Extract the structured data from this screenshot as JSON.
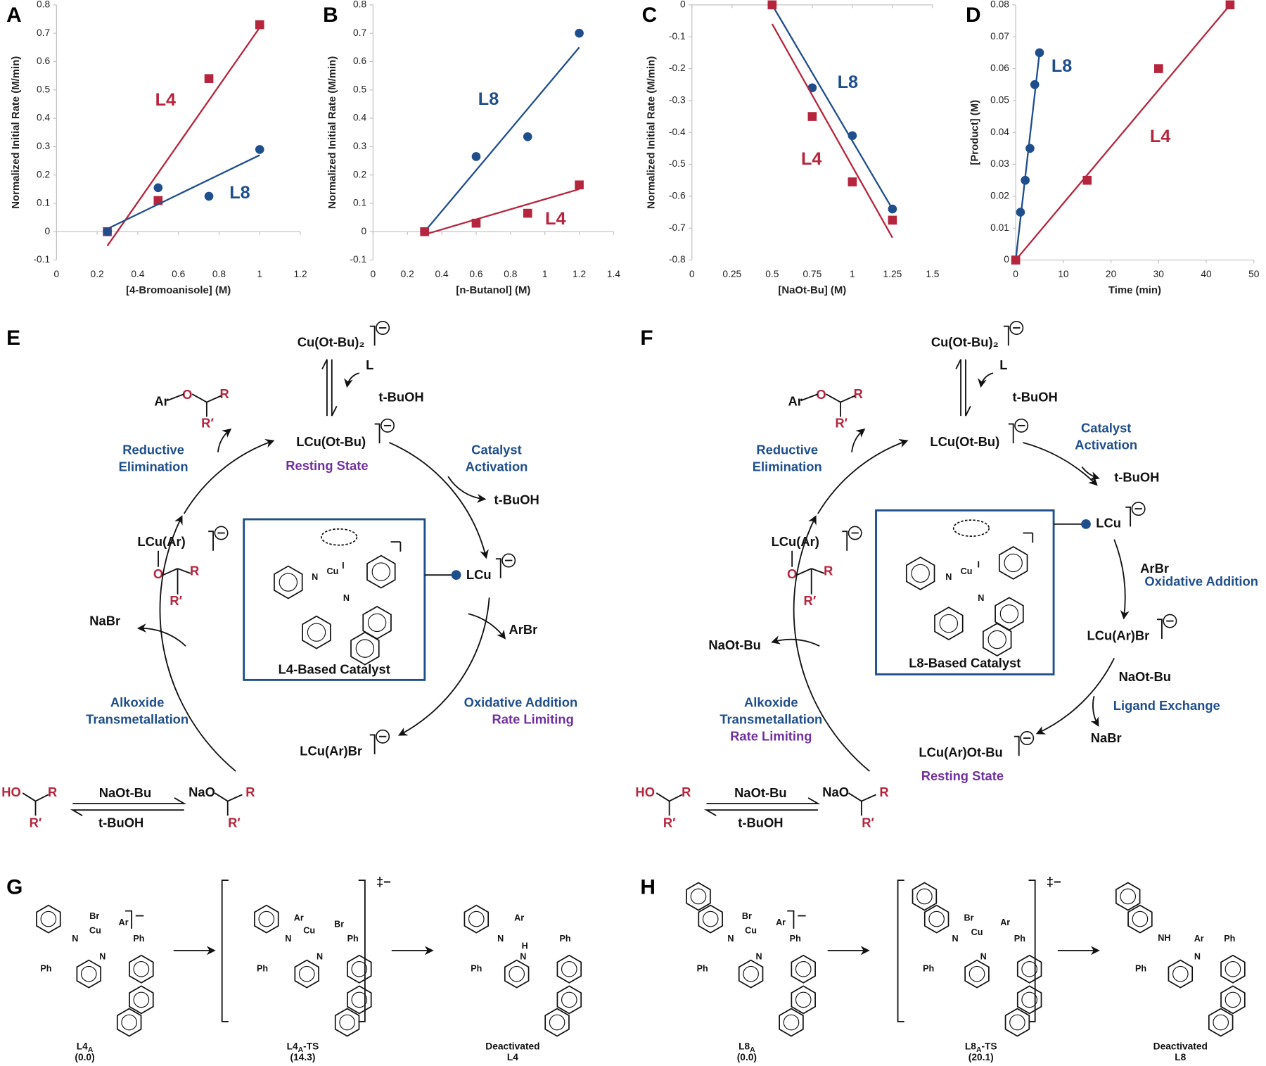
{
  "chart_data": [
    {
      "type": "scatter",
      "panel_label": "A",
      "x_label": "[4-Bromoanisole] (M)",
      "y_label": "Normalized Initial Rate (M/min)",
      "xlim": [
        0,
        1.2
      ],
      "xticks": [
        0,
        0.2,
        0.4,
        0.6,
        0.8,
        1,
        1.2
      ],
      "ylim": [
        -0.1,
        0.8
      ],
      "yticks": [
        -0.1,
        0,
        0.1,
        0.2,
        0.3,
        0.4,
        0.5,
        0.6,
        0.7,
        0.8
      ],
      "series": [
        {
          "name": "L4",
          "color": "#b5253d",
          "marker": "square",
          "x": [
            0.25,
            0.5,
            0.75,
            1
          ],
          "values": [
            0,
            0.11,
            0.54,
            0.73
          ],
          "trendline": {
            "x": [
              0.25,
              1
            ],
            "y": [
              -0.05,
              0.72
            ]
          }
        },
        {
          "name": "L8",
          "color": "#1f4e8c",
          "marker": "circle",
          "x": [
            0.25,
            0.5,
            0.75,
            1
          ],
          "values": [
            0,
            0.155,
            0.125,
            0.29
          ],
          "trendline": {
            "x": [
              0.25,
              1
            ],
            "y": [
              0.01,
              0.27
            ]
          }
        }
      ]
    },
    {
      "type": "scatter",
      "panel_label": "B",
      "x_label": "[n-Butanol] (M)",
      "y_label": "Normalized Initial Rate (M/min)",
      "xlim": [
        0,
        1.4
      ],
      "xticks": [
        0,
        0.2,
        0.4,
        0.6,
        0.8,
        1,
        1.2,
        1.4
      ],
      "ylim": [
        -0.1,
        0.8
      ],
      "yticks": [
        -0.1,
        0,
        0.1,
        0.2,
        0.3,
        0.4,
        0.5,
        0.6,
        0.7,
        0.8
      ],
      "series": [
        {
          "name": "L8",
          "color": "#1f4e8c",
          "marker": "circle",
          "x": [
            0.3,
            0.6,
            0.9,
            1.2
          ],
          "values": [
            0,
            0.265,
            0.335,
            0.7
          ],
          "trendline": {
            "x": [
              0.3,
              1.2
            ],
            "y": [
              0,
              0.65
            ]
          }
        },
        {
          "name": "L4",
          "color": "#b5253d",
          "marker": "square",
          "x": [
            0.3,
            0.6,
            0.9,
            1.2
          ],
          "values": [
            0,
            0.03,
            0.065,
            0.165
          ],
          "trendline": {
            "x": [
              0.3,
              1.2
            ],
            "y": [
              -0.01,
              0.15
            ]
          }
        }
      ]
    },
    {
      "type": "scatter",
      "panel_label": "C",
      "x_label": "[NaOt-Bu] (M)",
      "y_label": "Normalized Initial Rate (M/min)",
      "xlim": [
        0,
        1.5
      ],
      "xticks": [
        0,
        0.25,
        0.5,
        0.75,
        1,
        1.25,
        1.5
      ],
      "ylim": [
        -0.8,
        0
      ],
      "yticks": [
        -0.8,
        -0.7,
        -0.6,
        -0.5,
        -0.4,
        -0.3,
        -0.2,
        -0.1,
        0
      ],
      "series": [
        {
          "name": "L8",
          "color": "#1f4e8c",
          "marker": "circle",
          "x": [
            0.5,
            0.75,
            1,
            1.25
          ],
          "values": [
            0,
            -0.26,
            -0.41,
            -0.64
          ],
          "trendline": {
            "x": [
              0.5,
              1.25
            ],
            "y": [
              0,
              -0.64
            ]
          }
        },
        {
          "name": "L4",
          "color": "#b5253d",
          "marker": "square",
          "x": [
            0.5,
            0.75,
            1,
            1.25
          ],
          "values": [
            0,
            -0.35,
            -0.555,
            -0.675
          ],
          "trendline": {
            "x": [
              0.5,
              1.25
            ],
            "y": [
              -0.06,
              -0.73
            ]
          }
        }
      ]
    },
    {
      "type": "scatter",
      "panel_label": "D",
      "x_label": "Time (min)",
      "y_label": "[Product] (M)",
      "xlim": [
        0,
        50
      ],
      "xticks": [
        0,
        10,
        20,
        30,
        40,
        50
      ],
      "ylim": [
        0,
        0.08
      ],
      "yticks": [
        0,
        0.01,
        0.02,
        0.03,
        0.04,
        0.05,
        0.06,
        0.07,
        0.08
      ],
      "series": [
        {
          "name": "L8",
          "color": "#1f4e8c",
          "marker": "circle",
          "x": [
            0,
            1,
            2,
            3,
            4,
            5
          ],
          "values": [
            0,
            0.015,
            0.025,
            0.035,
            0.055,
            0.065
          ],
          "trendline": {
            "x": [
              0,
              5
            ],
            "y": [
              0,
              0.065
            ]
          }
        },
        {
          "name": "L4",
          "color": "#b5253d",
          "marker": "square",
          "x": [
            0,
            15,
            30,
            45
          ],
          "values": [
            0,
            0.025,
            0.06,
            0.08
          ],
          "trendline": {
            "x": [
              0,
              45
            ],
            "y": [
              0,
              0.08
            ]
          }
        }
      ]
    }
  ],
  "scheme_e": {
    "label": "E",
    "catalyst_label": "L4-Based Catalyst",
    "catalyst_atoms": [
      "N",
      "Cu",
      "I",
      "N"
    ],
    "texts": [
      "Cu(Ot-Bu)₂",
      "L",
      "t-BuOH",
      "Ar",
      "O",
      "R",
      "R′",
      "LCu(Ot-Bu)",
      "Resting State",
      "Reductive",
      "Elimination",
      "Catalyst",
      "Activation",
      "t-BuOH",
      "LCu",
      "LCu(Ar)",
      "O",
      "R",
      "R′",
      "NaBr",
      "ArBr",
      "Oxidative Addition",
      "Rate Limiting",
      "Alkoxide",
      "Transmetallation",
      "LCu(Ar)Br",
      "HO",
      "R",
      "R′",
      "NaOt-Bu",
      "t-BuOH",
      "NaO",
      "R",
      "R′"
    ]
  },
  "scheme_f": {
    "label": "F",
    "catalyst_label": "L8-Based Catalyst",
    "catalyst_atoms": [
      "N",
      "Cu",
      "I",
      "N"
    ],
    "texts": [
      "Cu(Ot-Bu)₂",
      "L",
      "t-BuOH",
      "Ar",
      "O",
      "R",
      "R′",
      "LCu(Ot-Bu)",
      "Reductive",
      "Elimination",
      "Catalyst",
      "Activation",
      "t-BuOH",
      "LCu",
      "ArBr",
      "Oxidative Addition",
      "LCu(Ar)Br",
      "NaOt-Bu",
      "Ligand Exchange",
      "NaBr",
      "LCu(Ar)Ot-Bu",
      "Resting State",
      "LCu(Ar)",
      "O",
      "R",
      "R′",
      "NaOt-Bu",
      "Alkoxide",
      "Transmetallation",
      "Rate Limiting",
      "HO",
      "R",
      "R′",
      "NaOt-Bu",
      "t-BuOH",
      "NaO",
      "R",
      "R′"
    ]
  },
  "panel_g": {
    "label": "G",
    "ts_charge": "‡−",
    "compounds": [
      {
        "label": [
          "L4",
          "A"
        ],
        "note": "(0.0)",
        "atoms": [
          "Br",
          "Cu",
          "Ar",
          "N",
          "N",
          "Ph",
          "Ph"
        ]
      },
      {
        "label": [
          "L4",
          "A",
          "-TS"
        ],
        "note": "(14.3)",
        "atoms": [
          "Ar",
          "Br",
          "Cu",
          "N",
          "N",
          "Ph",
          "Ph"
        ]
      },
      {
        "label": [
          "Deactivated"
        ],
        "note": "L4",
        "atoms": [
          "Ar",
          "N",
          "H",
          "N",
          "Ph",
          "Ph"
        ]
      }
    ]
  },
  "panel_h": {
    "label": "H",
    "ts_charge": "‡−",
    "compounds": [
      {
        "label": [
          "L8",
          "A"
        ],
        "note": "(0.0)",
        "atoms": [
          "Br",
          "Cu",
          "Ar",
          "N",
          "N",
          "Ph",
          "Ph"
        ]
      },
      {
        "label": [
          "L8",
          "A",
          "-TS"
        ],
        "note": "(20.1)",
        "atoms": [
          "Br",
          "Ar",
          "Cu",
          "N",
          "N",
          "Ph",
          "Ph"
        ]
      },
      {
        "label": [
          "Deactivated"
        ],
        "note": "L8",
        "atoms": [
          "NH",
          "Ar",
          "N",
          "Ph",
          "Ph"
        ]
      }
    ]
  }
}
